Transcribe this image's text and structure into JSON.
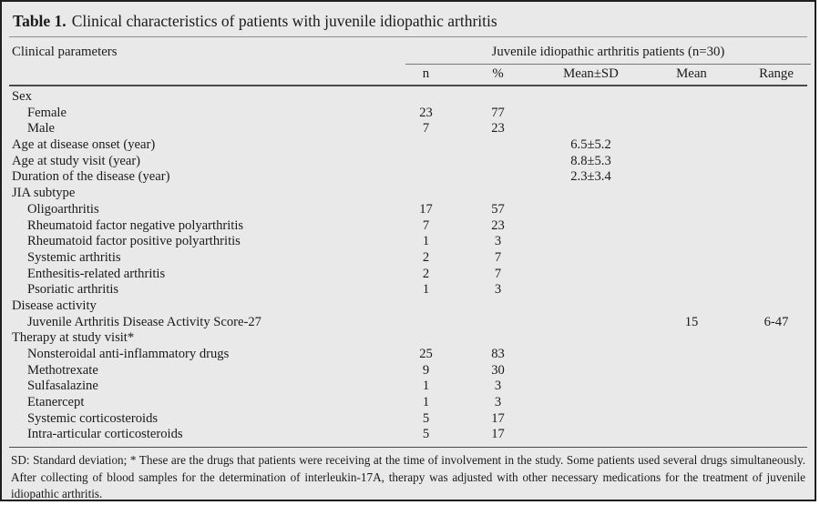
{
  "title": {
    "label": "Table 1.",
    "caption": "Clinical characteristics of patients with juvenile idiopathic arthritis"
  },
  "table": {
    "left_header": "Clinical parameters",
    "group_header": "Juvenile idiopathic arthritis patients (n=30)",
    "columns": [
      "n",
      "%",
      "Mean±SD",
      "Mean",
      "Range"
    ],
    "rows": [
      {
        "label": "Sex",
        "indent": 0,
        "n": "",
        "pct": "",
        "meansd": "",
        "mean": "",
        "range": ""
      },
      {
        "label": "Female",
        "indent": 1,
        "n": "23",
        "pct": "77",
        "meansd": "",
        "mean": "",
        "range": ""
      },
      {
        "label": "Male",
        "indent": 1,
        "n": "7",
        "pct": "23",
        "meansd": "",
        "mean": "",
        "range": ""
      },
      {
        "label": "Age at disease onset (year)",
        "indent": 0,
        "n": "",
        "pct": "",
        "meansd": "6.5±5.2",
        "mean": "",
        "range": ""
      },
      {
        "label": "Age at study visit (year)",
        "indent": 0,
        "n": "",
        "pct": "",
        "meansd": "8.8±5.3",
        "mean": "",
        "range": ""
      },
      {
        "label": "Duration of the disease (year)",
        "indent": 0,
        "n": "",
        "pct": "",
        "meansd": "2.3±3.4",
        "mean": "",
        "range": ""
      },
      {
        "label": "JIA subtype",
        "indent": 0,
        "n": "",
        "pct": "",
        "meansd": "",
        "mean": "",
        "range": ""
      },
      {
        "label": "Oligoarthritis",
        "indent": 1,
        "n": "17",
        "pct": "57",
        "meansd": "",
        "mean": "",
        "range": ""
      },
      {
        "label": "Rheumatoid factor negative polyarthritis",
        "indent": 1,
        "n": "7",
        "pct": "23",
        "meansd": "",
        "mean": "",
        "range": ""
      },
      {
        "label": "Rheumatoid factor positive polyarthritis",
        "indent": 1,
        "n": "1",
        "pct": "3",
        "meansd": "",
        "mean": "",
        "range": ""
      },
      {
        "label": "Systemic arthritis",
        "indent": 1,
        "n": "2",
        "pct": "7",
        "meansd": "",
        "mean": "",
        "range": ""
      },
      {
        "label": "Enthesitis-related arthritis",
        "indent": 1,
        "n": "2",
        "pct": "7",
        "meansd": "",
        "mean": "",
        "range": ""
      },
      {
        "label": "Psoriatic arthritis",
        "indent": 1,
        "n": "1",
        "pct": "3",
        "meansd": "",
        "mean": "",
        "range": ""
      },
      {
        "label": "Disease activity",
        "indent": 0,
        "n": "",
        "pct": "",
        "meansd": "",
        "mean": "",
        "range": ""
      },
      {
        "label": "Juvenile Arthritis Disease Activity Score-27",
        "indent": 1,
        "n": "",
        "pct": "",
        "meansd": "",
        "mean": "15",
        "range": "6-47"
      },
      {
        "label": "Therapy at study visit*",
        "indent": 0,
        "n": "",
        "pct": "",
        "meansd": "",
        "mean": "",
        "range": ""
      },
      {
        "label": "Nonsteroidal anti-inflammatory drugs",
        "indent": 1,
        "n": "25",
        "pct": "83",
        "meansd": "",
        "mean": "",
        "range": ""
      },
      {
        "label": "Methotrexate",
        "indent": 1,
        "n": "9",
        "pct": "30",
        "meansd": "",
        "mean": "",
        "range": ""
      },
      {
        "label": "Sulfasalazine",
        "indent": 1,
        "n": "1",
        "pct": "3",
        "meansd": "",
        "mean": "",
        "range": ""
      },
      {
        "label": "Etanercept",
        "indent": 1,
        "n": "1",
        "pct": "3",
        "meansd": "",
        "mean": "",
        "range": ""
      },
      {
        "label": "Systemic corticosteroids",
        "indent": 1,
        "n": "5",
        "pct": "17",
        "meansd": "",
        "mean": "",
        "range": ""
      },
      {
        "label": "Intra-articular corticosteroids",
        "indent": 1,
        "n": "5",
        "pct": "17",
        "meansd": "",
        "mean": "",
        "range": ""
      }
    ]
  },
  "footnote": "SD: Standard deviation; * These are the drugs that patients were receiving at the time of involvement in the study. Some patients used several drugs simultaneously. After collecting of blood samples for the determination of interleukin-17A, therapy was adjusted with other necessary medications for the treatment of juvenile idiopathic arthritis."
}
